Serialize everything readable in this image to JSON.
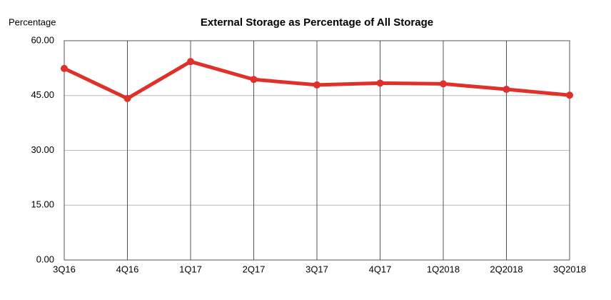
{
  "chart_data": {
    "type": "line",
    "title": "External Storage as Percentage of All Storage",
    "y_label": "Percentage",
    "categories": [
      "3Q16",
      "4Q16",
      "1Q17",
      "2Q17",
      "3Q17",
      "4Q17",
      "1Q2018",
      "2Q2018",
      "3Q2018"
    ],
    "series": [
      {
        "name": "External Storage",
        "color": "#e0302a",
        "values": [
          52.4,
          44.2,
          54.3,
          49.4,
          47.9,
          48.4,
          48.2,
          46.7,
          45.1
        ]
      }
    ],
    "ylim": [
      0,
      60
    ],
    "yticks": [
      {
        "value": 0,
        "label": "0.00"
      },
      {
        "value": 15,
        "label": "15.00"
      },
      {
        "value": 30,
        "label": "30.00"
      },
      {
        "value": 45,
        "label": "45.00"
      },
      {
        "value": 60,
        "label": "60.00"
      }
    ],
    "grid": true
  }
}
